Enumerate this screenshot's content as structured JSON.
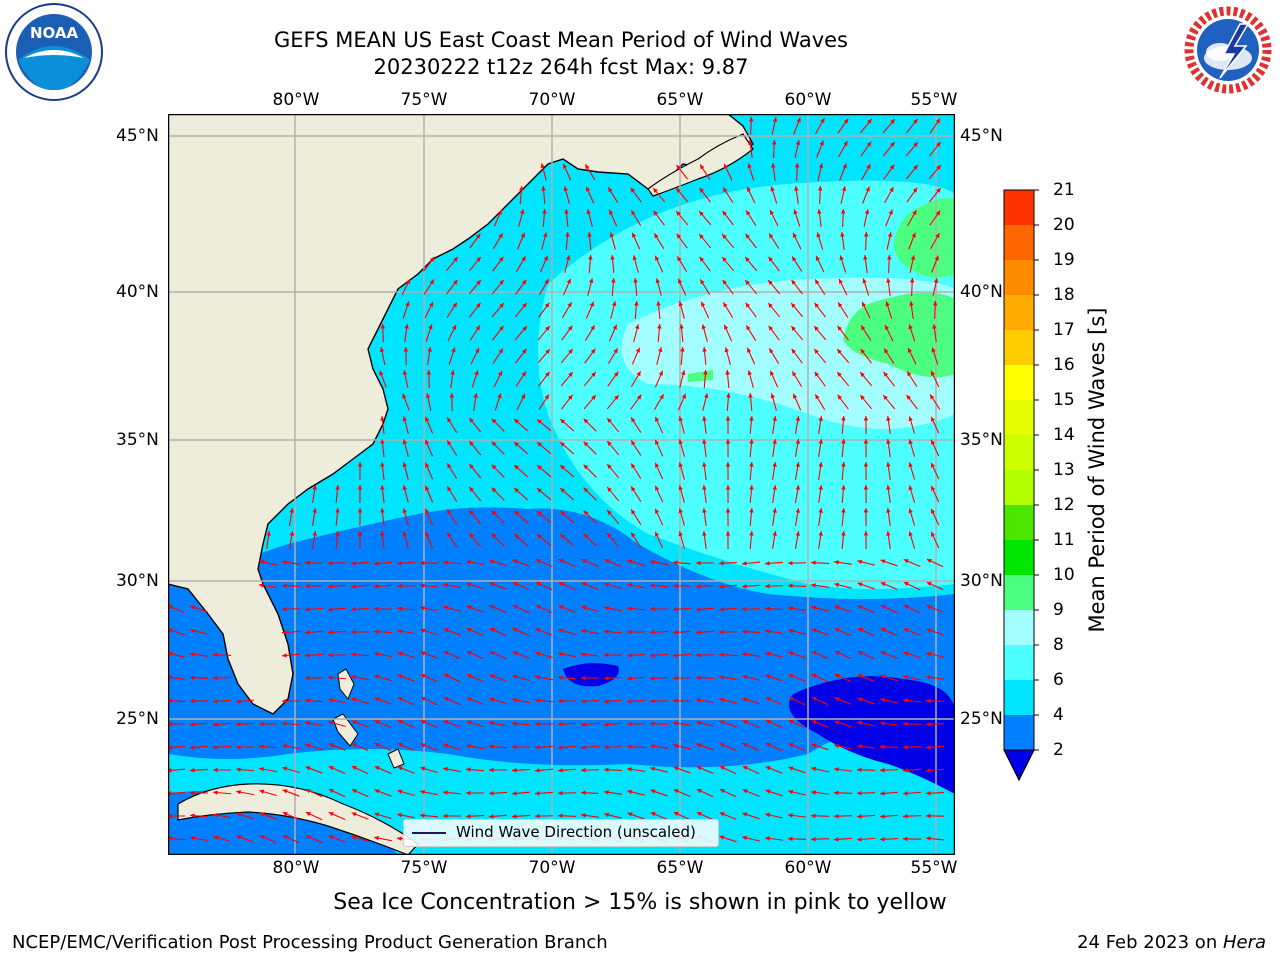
{
  "title": {
    "line1": "GEFS MEAN US East Coast Mean Period of Wind Waves",
    "line2": "20230222 t12z 264h fcst   Max: 9.87"
  },
  "logos": {
    "left": "NOAA",
    "left_ring": "NATIONAL OCEANIC AND ATMOSPHERIC ADMINISTRATION  U.S. DEPARTMENT OF COMMERCE",
    "right_ring": "NATIONAL WEATHER SERVICE"
  },
  "map": {
    "lon_labels": [
      "80°W",
      "75°W",
      "70°W",
      "65°W",
      "60°W",
      "55°W"
    ],
    "lat_labels": [
      "45°N",
      "40°N",
      "35°N",
      "30°N",
      "25°N"
    ],
    "land_color": "#eeeddc",
    "arrow_color": "#ff0000",
    "grid_color": "#b0b0b0"
  },
  "legend": {
    "label": "Wind Wave Direction (unscaled)"
  },
  "colorbar": {
    "label": "Mean Period of Wind Waves [s]",
    "ticks": [
      "2",
      "4",
      "6",
      "8",
      "9",
      "10",
      "11",
      "12",
      "13",
      "14",
      "15",
      "16",
      "17",
      "18",
      "19",
      "20",
      "21"
    ],
    "colors": [
      "#0080ff",
      "#00e5ff",
      "#4dffff",
      "#a3ffff",
      "#4dff80",
      "#00e600",
      "#4ce600",
      "#b2ff00",
      "#ccff00",
      "#e6ff00",
      "#ffff00",
      "#ffcc00",
      "#ffaa00",
      "#ff8c00",
      "#ff6600",
      "#ff3300",
      "#ff0000"
    ],
    "under_color": "#0000e6"
  },
  "caption": "Sea Ice Concentration > 15% is shown in pink to yellow",
  "footer": {
    "left": "NCEP/EMC/Verification Post Processing Product Generation Branch",
    "date": "24 Feb 2023 on ",
    "machine": "Hera"
  }
}
